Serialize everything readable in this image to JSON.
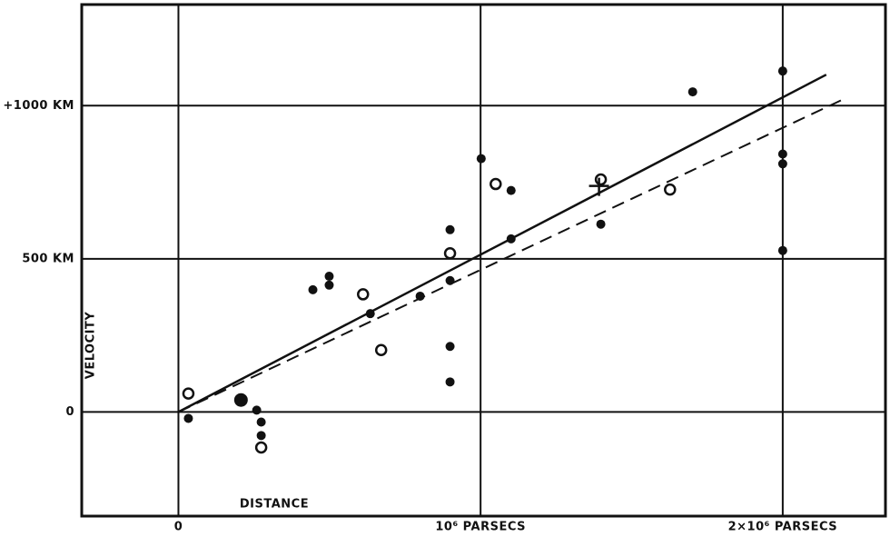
{
  "chart_data": {
    "type": "scatter",
    "xlabel": "DISTANCE",
    "ylabel": "VELOCITY",
    "xlim": [
      -320000,
      2340000
    ],
    "ylim": [
      -340,
      1330
    ],
    "xticks": [
      0,
      {
        "value": 1000000,
        "label": "10⁶ PARSECS"
      },
      {
        "value": 2000000,
        "label": "2×10⁶ PARSECS"
      }
    ],
    "yticks": [
      0,
      {
        "value": 500,
        "label": "500 KM"
      },
      {
        "value": 1000,
        "label": "+1000 KM"
      }
    ],
    "grid": true,
    "color": "#111111",
    "series": [
      {
        "marker": "dot",
        "x": [
          33000,
          259000,
          274000,
          274000,
          445000,
          499000,
          499000,
          635000,
          800000,
          899000,
          899000,
          899000,
          899000,
          1002000,
          1101000,
          1101000,
          1398000,
          1702000,
          2000000,
          2000000,
          2000000,
          2000000
        ],
        "values": [
          -21,
          6,
          -33,
          -77,
          399,
          443,
          414,
          321,
          378,
          595,
          429,
          214,
          98,
          827,
          723,
          565,
          613,
          1045,
          1113,
          842,
          810,
          527
        ]
      },
      {
        "marker": "large-dot",
        "x": [
          207000
        ],
        "values": [
          39
        ]
      },
      {
        "marker": "circle",
        "x": [
          33000,
          274000,
          611000,
          671000,
          899000,
          1050000,
          1398000,
          1627000
        ],
        "values": [
          60,
          -116,
          384,
          202,
          518,
          744,
          759,
          726
        ]
      },
      {
        "marker": "cross",
        "x": [
          1392000
        ],
        "values": [
          738
        ]
      }
    ],
    "lines": [
      {
        "style": "solid",
        "x": [
          0,
          2144000
        ],
        "values": [
          0,
          1101
        ]
      },
      {
        "style": "dashed",
        "x": [
          0,
          2214000
        ],
        "values": [
          0,
          1027
        ]
      }
    ]
  }
}
